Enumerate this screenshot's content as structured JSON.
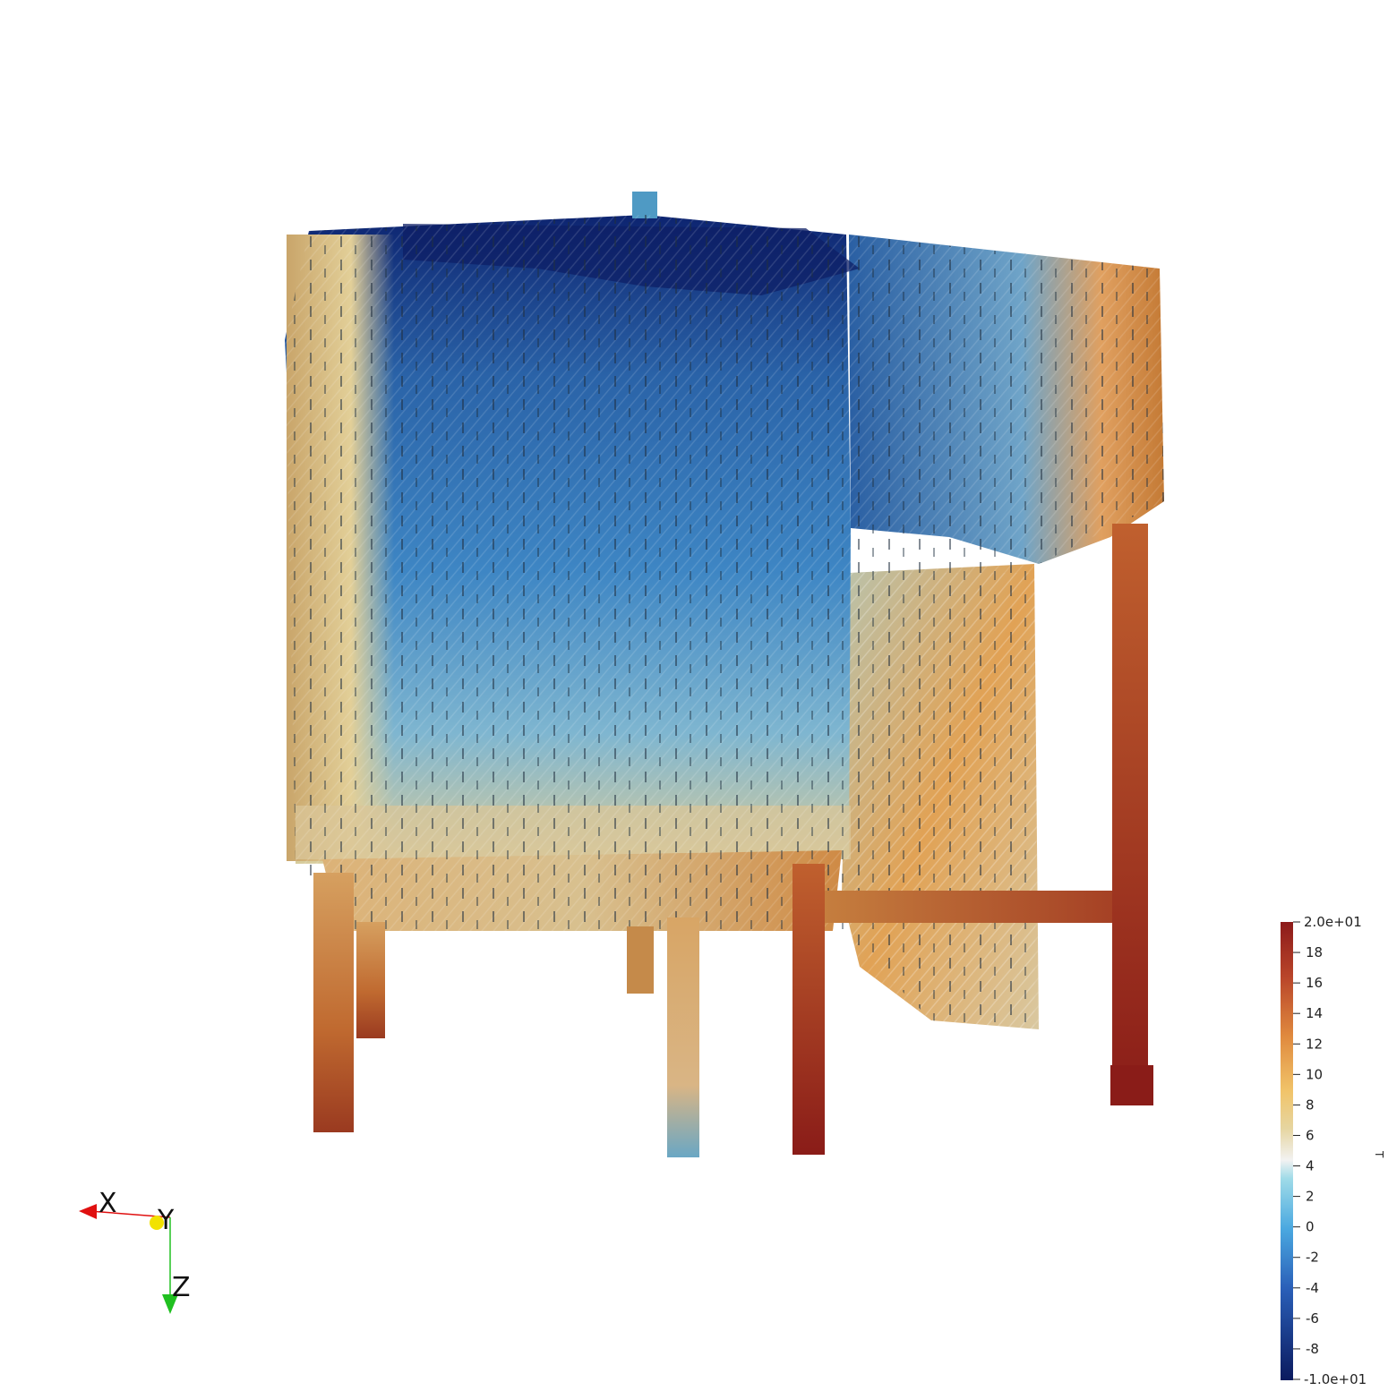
{
  "colorbar": {
    "title": "T",
    "min_label": "-1.0e+01",
    "max_label": "2.0e+01",
    "range": [
      -10,
      20
    ],
    "ticks": [
      "18",
      "16",
      "14",
      "12",
      "10",
      "8",
      "6",
      "4",
      "2",
      "0",
      "-2",
      "-4",
      "-6",
      "-8"
    ],
    "tick_values": [
      18,
      16,
      14,
      12,
      10,
      8,
      6,
      4,
      2,
      0,
      -2,
      -4,
      -6,
      -8
    ],
    "colors": {
      "low": "#0b1a5e",
      "mid_low": "#3b8fd1",
      "light_blue": "#7fd0ec",
      "neutral": "#f2f2f2",
      "sand": "#e8d7a2",
      "orange": "#e0913f",
      "high": "#8c1a1a"
    }
  },
  "orientation_axes": {
    "x_label": "X",
    "y_label": "Y",
    "z_label": "Z",
    "x_color": "#e01010",
    "y_color": "#f2e200",
    "z_color": "#20c020"
  }
}
